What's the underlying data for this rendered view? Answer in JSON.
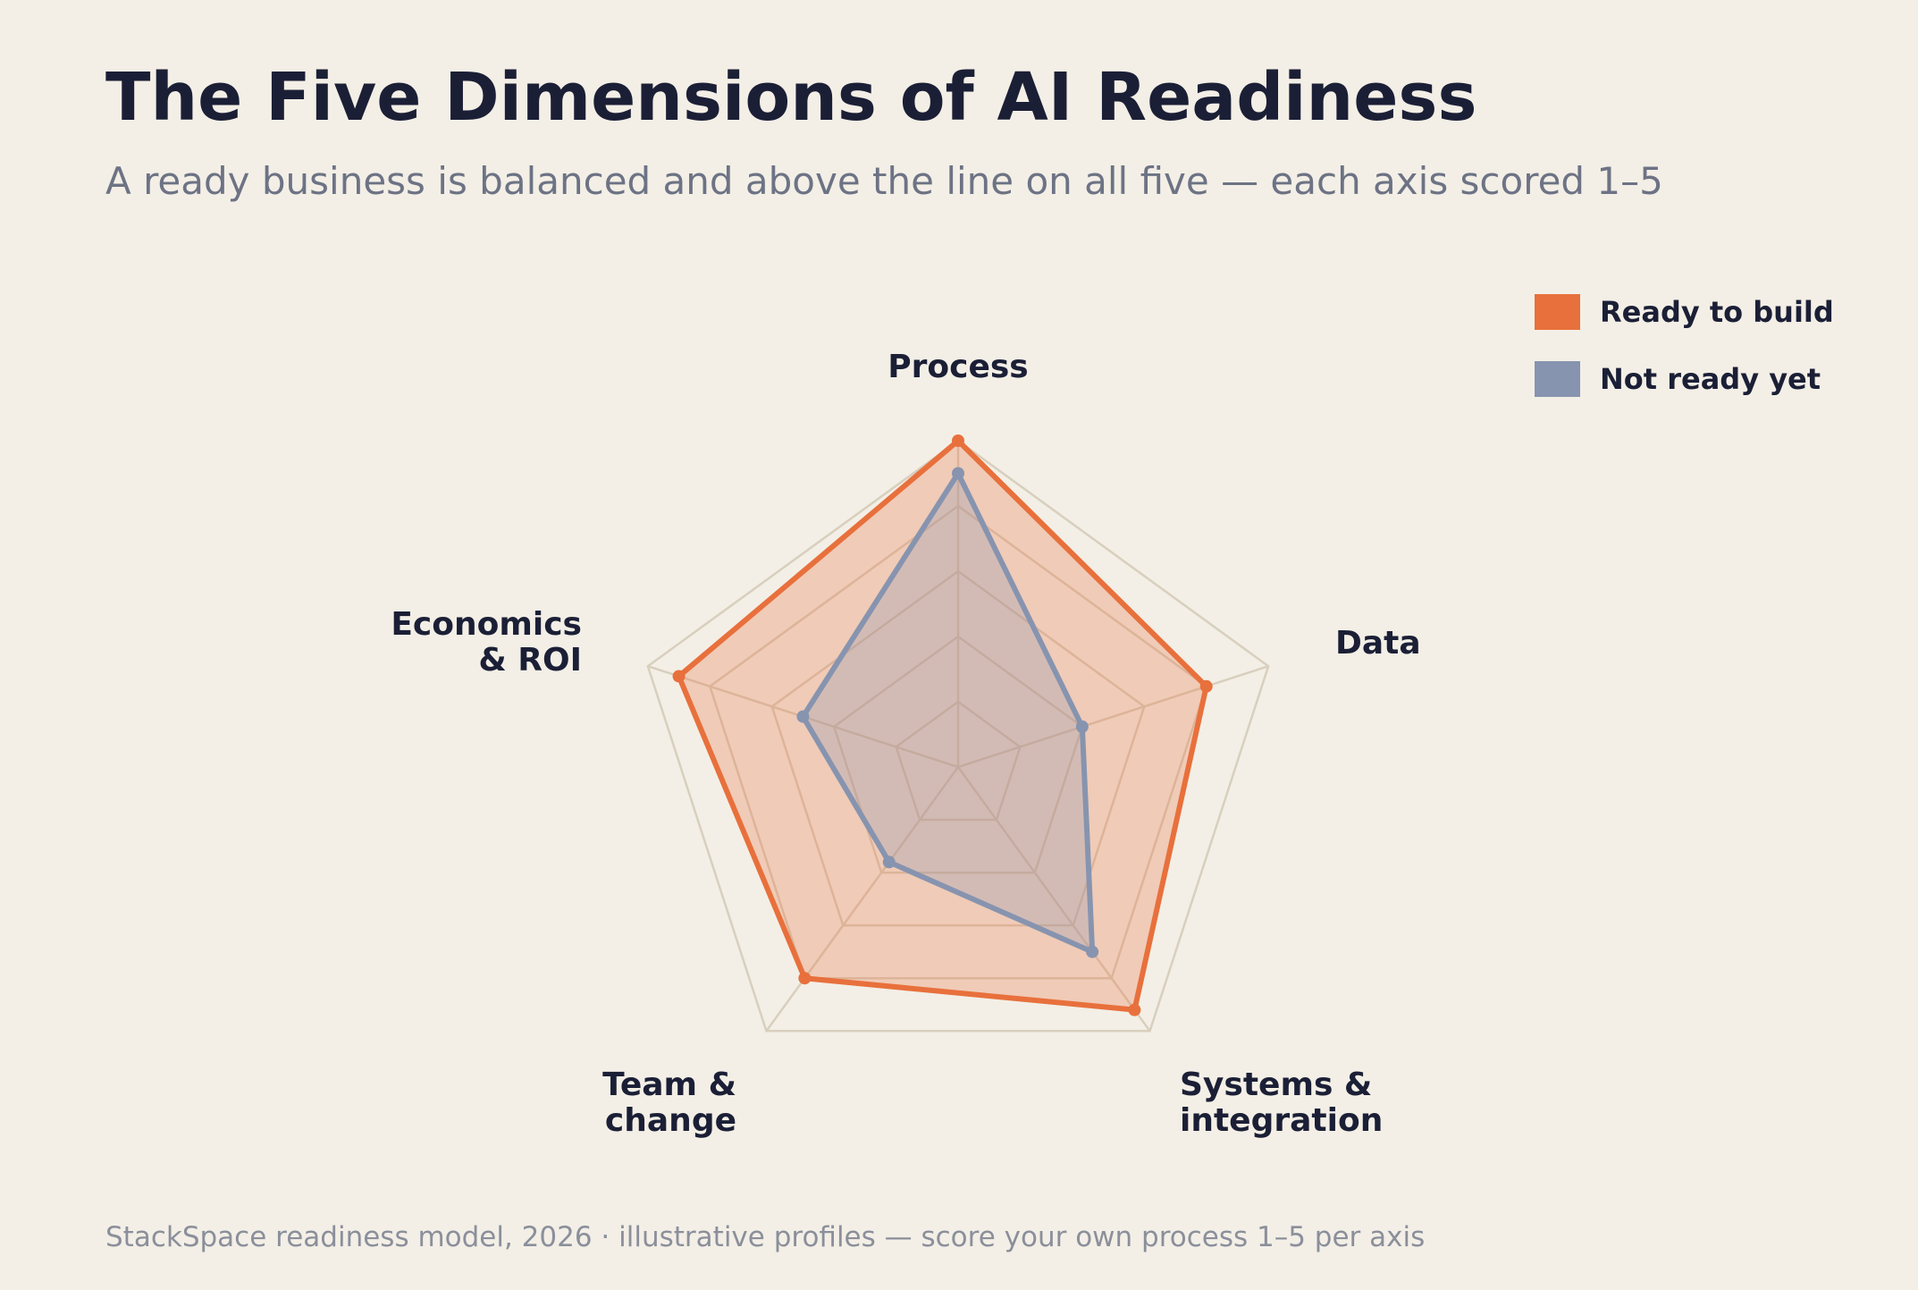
{
  "header": {
    "title": "The Five Dimensions of AI Readiness",
    "subtitle": "A ready business is balanced and above the line on all five — each axis scored 1–5"
  },
  "footer": {
    "note": "StackSpace readiness model, 2026  ·  illustrative profiles — score your own process 1–5 per axis"
  },
  "colors": {
    "ready": "#e8703c",
    "not_ready": "#8794af",
    "grid": "#d8cfbd",
    "text": "#1b1f36"
  },
  "chart_data": {
    "type": "radar",
    "title": "The Five Dimensions of AI Readiness",
    "axes": [
      {
        "label_lines": [
          "Process"
        ]
      },
      {
        "label_lines": [
          "Data"
        ]
      },
      {
        "label_lines": [
          "Systems &",
          "integration"
        ]
      },
      {
        "label_lines": [
          "Team &",
          "change"
        ]
      },
      {
        "label_lines": [
          "Economics",
          "& ROI"
        ]
      }
    ],
    "range": [
      0,
      5
    ],
    "rings": 5,
    "legend_position": "top-right",
    "series": [
      {
        "name": "Ready to build",
        "color": "#e8703c",
        "values": [
          5,
          4,
          4.6,
          4.0,
          4.5
        ]
      },
      {
        "name": "Not ready yet",
        "color": "#8794af",
        "values": [
          4.5,
          2,
          3.5,
          1.8,
          2.5
        ]
      }
    ]
  }
}
